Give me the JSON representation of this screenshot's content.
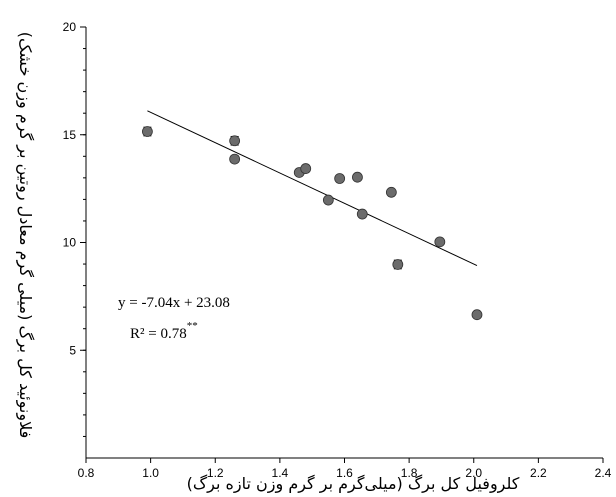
{
  "chart_data": {
    "type": "scatter",
    "xlabel": "کلروفیل کل برگ (میلی‌گرم بر گرم وزن تازه برگ)",
    "ylabel": "فلاونوئید کل برگ (میلی گرم معادل روتین بر گرم وزن خشک)",
    "xlim": [
      0.8,
      2.4
    ],
    "ylim": [
      0,
      20
    ],
    "x_ticks": [
      "0.8",
      "1.0",
      "1.2",
      "1.4",
      "1.6",
      "1.8",
      "2.0",
      "2.2",
      "2.4"
    ],
    "y_ticks": [
      "5",
      "10",
      "15",
      "20"
    ],
    "points": [
      {
        "x": 0.99,
        "y": 15.15,
        "err": 0.2
      },
      {
        "x": 1.26,
        "y": 14.72,
        "err": 0.2
      },
      {
        "x": 1.26,
        "y": 13.87,
        "err": 0.15
      },
      {
        "x": 1.46,
        "y": 13.25,
        "err": 0.1
      },
      {
        "x": 1.48,
        "y": 13.43,
        "err": 0.15
      },
      {
        "x": 1.55,
        "y": 11.97,
        "err": 0.1
      },
      {
        "x": 1.585,
        "y": 12.97,
        "err": 0.1
      },
      {
        "x": 1.64,
        "y": 13.03,
        "err": 0.1
      },
      {
        "x": 1.655,
        "y": 11.32,
        "err": 0.1
      },
      {
        "x": 1.745,
        "y": 12.33,
        "err": 0.1
      },
      {
        "x": 1.765,
        "y": 8.98,
        "err": 0.2
      },
      {
        "x": 1.895,
        "y": 10.03,
        "err": 0.1
      },
      {
        "x": 2.01,
        "y": 6.65,
        "err": 0.1
      }
    ],
    "trendline": {
      "slope": -7.04,
      "intercept": 23.08,
      "x_start": 0.99,
      "x_end": 2.01
    },
    "equation": "y = -7.04x + 23.08",
    "r2_text": "R² = 0.78",
    "significance": "**",
    "grid": false,
    "marker_color": "#6b6b6b",
    "line_color": "#000000"
  }
}
